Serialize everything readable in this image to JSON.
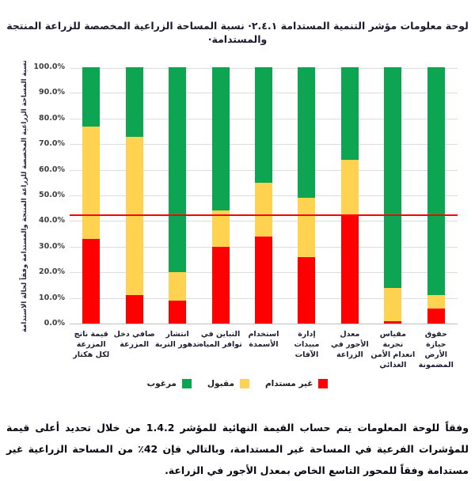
{
  "title": {
    "line1": "لوحة معلومات مؤشر التنمية المستدامة ٢.٤.١· نسبة المساحة الزراعية المخصصة للزراعة المنتجة",
    "line2": "والمستدامة·"
  },
  "chart_data": {
    "type": "bar",
    "stacked": true,
    "title": "لوحة معلومات مؤشر التنمية المستدامة ٢.٤.١ نسبة المساحة الزراعية المخصصة للزراعة المنتجة والمستدامة",
    "ylabel": "نسبة المساحة الزراعية المخصصة للزراعة المنتجة والمستدامة وفقاً لحالة الاستدامة",
    "xlabel": "",
    "ylim": [
      0,
      100
    ],
    "ytick_step": 10,
    "ytick_suffix": "%",
    "grid": true,
    "legend_position": "bottom",
    "categories": [
      "قيمة ناتج المزرعة لكل هكتار",
      "صافي دخل المزرعة",
      "انتشار تدهور التربة",
      "التباين في توافر المياه",
      "استخدام الأسمدة",
      "إدارة مبيدات الآفات",
      "معدل الأجور في الزراعة",
      "مقياس تجربة انعدام الأمن الغذائي",
      "حقوق حيازة الأرض المضمونة"
    ],
    "series": [
      {
        "name": "غير مستدام",
        "color": "#ff0000",
        "values": [
          33,
          11,
          9,
          30,
          34,
          26,
          42,
          1,
          6
        ]
      },
      {
        "name": "مقبول",
        "color": "#ffd24f",
        "values": [
          44,
          62,
          11,
          14,
          21,
          23,
          22,
          13,
          5
        ]
      },
      {
        "name": "مرغوب",
        "color": "#0ea552",
        "values": [
          23,
          27,
          80,
          56,
          45,
          51,
          36,
          86,
          89
        ]
      }
    ],
    "reference_line": {
      "value": 42.5,
      "color": "#ff0000"
    }
  },
  "legend": {
    "items": [
      {
        "label": "مرغوب",
        "color": "#0ea552"
      },
      {
        "label": "مقبول",
        "color": "#ffd24f"
      },
      {
        "label": "غير مستدام",
        "color": "#ff0000"
      }
    ]
  },
  "footnote": "وفقاً للوحة المعلومات يتم حساب القيمة النهائية للمؤشر 1.4.2 من خلال تحديد أعلى قيمة للمؤشرات الفرعية في المساحة غير المستدامة، وبالتالي فإن 42٪ من المساحة الزراعية غير مستدامة وفقاً للمحور التاسع الخاص بمعدل الأجور في الزراعة.",
  "colors": {
    "unsustainable": "#ff0000",
    "acceptable": "#ffd24f",
    "desirable": "#0ea552",
    "reference_line": "#ff0000",
    "gridline": "#dcdcdc"
  }
}
